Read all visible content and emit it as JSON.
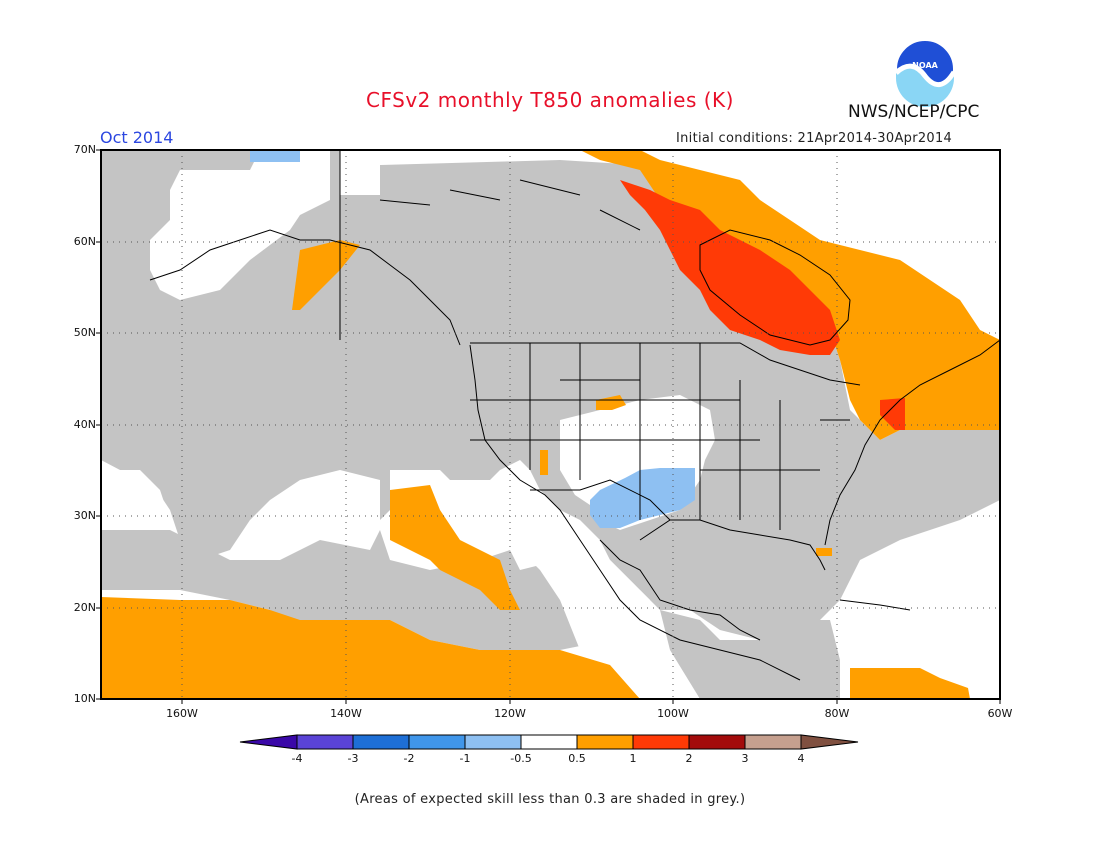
{
  "title": "CFSv2 monthly T850 anomalies (K)",
  "forecast_month": "Oct 2014",
  "initial_conditions": "Initial conditions: 21Apr2014-30Apr2014",
  "agency": "NWS/NCEP/CPC",
  "logo_text": "NOAA",
  "skill_note": "(Areas of expected skill less than 0.3 are shaded in grey.)",
  "lat_labels": [
    "70N",
    "60N",
    "50N",
    "40N",
    "30N",
    "20N",
    "10N"
  ],
  "lon_labels": [
    "160W",
    "140W",
    "120W",
    "100W",
    "80W",
    "60W"
  ],
  "colorbar": {
    "ticks": [
      "-4",
      "-3",
      "-2",
      "-1",
      "-0.5",
      "0.5",
      "1",
      "2",
      "3",
      "4"
    ],
    "colors": [
      "#3a08a8",
      "#5a43d6",
      "#1e6fd6",
      "#4096ea",
      "#8ec0f2",
      "#ffffff",
      "#ff9f00",
      "#ff3a06",
      "#a30b0b",
      "#c6a08f",
      "#805040"
    ]
  },
  "colors": {
    "low_skill_grey": "#c4c4c4",
    "anom_0_5_to_1": "#ff9f00",
    "anom_1_to_2": "#ff3a06",
    "anom_neg_0_5_to_neg_1": "#8ec0f2",
    "border_lines": "#000000"
  }
}
